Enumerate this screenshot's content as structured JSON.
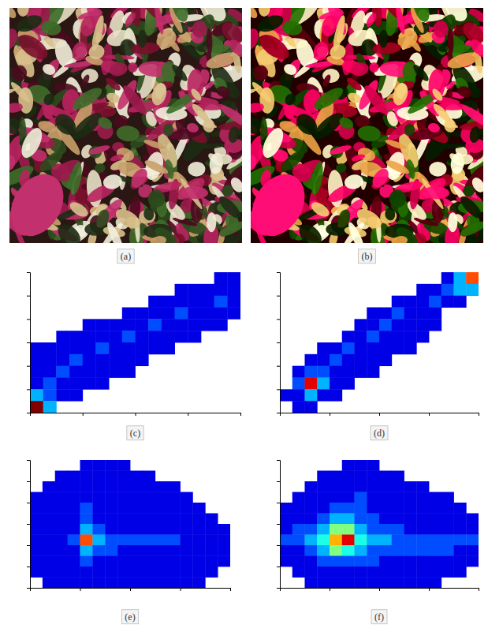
{
  "images": [
    {
      "caption": "(a)"
    },
    {
      "caption": "(b)"
    }
  ],
  "chart_data": [
    {
      "type": "heatmap",
      "caption": "(c)",
      "xlim": [
        0,
        16
      ],
      "ylim": [
        0,
        12
      ],
      "xticks": [
        0,
        4,
        8,
        12,
        16
      ],
      "yticks": [
        0,
        2,
        4,
        6,
        8,
        10,
        12
      ],
      "tick_labels": false,
      "zlim": [
        0,
        10
      ],
      "z": [
        [
          0,
          0,
          0,
          0,
          0,
          0,
          0,
          0,
          0,
          0,
          0,
          0,
          0,
          0,
          1,
          1
        ],
        [
          0,
          0,
          0,
          0,
          0,
          0,
          0,
          0,
          0,
          0,
          0,
          1,
          1,
          1,
          1,
          1
        ],
        [
          0,
          0,
          0,
          0,
          0,
          0,
          0,
          0,
          0,
          1,
          1,
          1,
          1,
          1,
          2,
          1
        ],
        [
          0,
          0,
          0,
          0,
          0,
          0,
          0,
          1,
          1,
          1,
          1,
          2,
          1,
          1,
          1,
          1
        ],
        [
          0,
          0,
          0,
          0,
          1,
          1,
          1,
          1,
          1,
          2,
          1,
          1,
          1,
          1,
          1,
          0
        ],
        [
          0,
          0,
          1,
          1,
          1,
          1,
          1,
          2,
          1,
          1,
          1,
          1,
          1,
          0,
          0,
          0
        ],
        [
          1,
          1,
          1,
          1,
          1,
          2,
          1,
          1,
          1,
          1,
          1,
          0,
          0,
          0,
          0,
          0
        ],
        [
          1,
          1,
          1,
          2,
          1,
          1,
          1,
          1,
          1,
          0,
          0,
          0,
          0,
          0,
          0,
          0
        ],
        [
          1,
          1,
          2,
          1,
          1,
          1,
          1,
          1,
          0,
          0,
          0,
          0,
          0,
          0,
          0,
          0
        ],
        [
          1,
          2,
          1,
          1,
          1,
          1,
          0,
          0,
          0,
          0,
          0,
          0,
          0,
          0,
          0,
          0
        ],
        [
          3,
          2,
          1,
          1,
          0,
          0,
          0,
          0,
          0,
          0,
          0,
          0,
          0,
          0,
          0,
          0
        ],
        [
          10,
          3,
          0,
          0,
          0,
          0,
          0,
          0,
          0,
          0,
          0,
          0,
          0,
          0,
          0,
          0
        ]
      ]
    },
    {
      "type": "heatmap",
      "caption": "(d)",
      "xlim": [
        0,
        16
      ],
      "ylim": [
        0,
        12
      ],
      "xticks": [
        0,
        4,
        8,
        12,
        16
      ],
      "yticks": [
        0,
        2,
        4,
        6,
        8,
        10,
        12
      ],
      "tick_labels": false,
      "zlim": [
        0,
        10
      ],
      "z": [
        [
          0,
          0,
          0,
          0,
          0,
          0,
          0,
          0,
          0,
          0,
          0,
          0,
          0,
          1,
          3,
          8
        ],
        [
          0,
          0,
          0,
          0,
          0,
          0,
          0,
          0,
          0,
          0,
          0,
          1,
          1,
          2,
          3,
          3
        ],
        [
          0,
          0,
          0,
          0,
          0,
          0,
          0,
          0,
          0,
          1,
          1,
          1,
          2,
          1,
          1,
          0
        ],
        [
          0,
          0,
          0,
          0,
          0,
          0,
          0,
          1,
          1,
          2,
          1,
          1,
          1,
          0,
          0,
          0
        ],
        [
          0,
          0,
          0,
          0,
          0,
          0,
          1,
          1,
          2,
          1,
          1,
          1,
          1,
          0,
          0,
          0
        ],
        [
          0,
          0,
          0,
          0,
          0,
          1,
          1,
          2,
          1,
          1,
          1,
          1,
          0,
          0,
          0,
          0
        ],
        [
          0,
          0,
          0,
          1,
          1,
          2,
          1,
          1,
          1,
          1,
          1,
          0,
          0,
          0,
          0,
          0
        ],
        [
          0,
          0,
          1,
          1,
          2,
          1,
          1,
          1,
          1,
          0,
          0,
          0,
          0,
          0,
          0,
          0
        ],
        [
          0,
          1,
          2,
          2,
          1,
          1,
          1,
          1,
          0,
          0,
          0,
          0,
          0,
          0,
          0,
          0
        ],
        [
          0,
          2,
          9,
          3,
          1,
          1,
          0,
          0,
          0,
          0,
          0,
          0,
          0,
          0,
          0,
          0
        ],
        [
          1,
          1,
          3,
          1,
          1,
          0,
          0,
          0,
          0,
          0,
          0,
          0,
          0,
          0,
          0,
          0
        ],
        [
          0,
          1,
          1,
          0,
          0,
          0,
          0,
          0,
          0,
          0,
          0,
          0,
          0,
          0,
          0,
          0
        ]
      ]
    },
    {
      "type": "heatmap",
      "caption": "(e)",
      "xlim": [
        0,
        16
      ],
      "ylim": [
        0,
        12
      ],
      "xticks": [
        0,
        4,
        8,
        12,
        16
      ],
      "yticks": [
        0,
        2,
        4,
        6,
        8,
        10,
        12
      ],
      "tick_labels": false,
      "zlim": [
        0,
        10
      ],
      "z": [
        [
          0,
          0,
          0,
          0,
          1,
          1,
          1,
          1,
          0,
          0,
          0,
          0,
          0,
          0,
          0,
          0
        ],
        [
          0,
          0,
          1,
          1,
          1,
          1,
          1,
          1,
          1,
          1,
          0,
          0,
          0,
          0,
          0,
          0
        ],
        [
          0,
          1,
          1,
          1,
          1,
          1,
          1,
          1,
          1,
          1,
          1,
          1,
          0,
          0,
          0,
          0
        ],
        [
          1,
          1,
          1,
          1,
          1,
          1,
          1,
          1,
          1,
          1,
          1,
          1,
          1,
          0,
          0,
          0
        ],
        [
          1,
          1,
          1,
          1,
          2,
          1,
          1,
          1,
          1,
          1,
          1,
          1,
          1,
          1,
          0,
          0
        ],
        [
          1,
          1,
          1,
          1,
          2,
          1,
          1,
          1,
          1,
          1,
          1,
          1,
          1,
          1,
          1,
          0
        ],
        [
          1,
          1,
          1,
          1,
          3,
          2,
          1,
          1,
          1,
          1,
          1,
          1,
          1,
          1,
          1,
          1
        ],
        [
          1,
          1,
          1,
          2,
          8,
          3,
          2,
          2,
          2,
          2,
          2,
          2,
          1,
          1,
          1,
          1
        ],
        [
          1,
          1,
          1,
          1,
          3,
          2,
          2,
          1,
          1,
          1,
          1,
          1,
          1,
          1,
          1,
          1
        ],
        [
          1,
          1,
          1,
          1,
          2,
          1,
          1,
          1,
          1,
          1,
          1,
          1,
          1,
          1,
          1,
          1
        ],
        [
          1,
          1,
          1,
          1,
          1,
          1,
          1,
          1,
          1,
          1,
          1,
          1,
          1,
          1,
          1,
          0
        ],
        [
          0,
          1,
          1,
          1,
          1,
          1,
          1,
          1,
          1,
          1,
          1,
          1,
          1,
          1,
          0,
          0
        ]
      ]
    },
    {
      "type": "heatmap",
      "caption": "(f)",
      "xlim": [
        0,
        16
      ],
      "ylim": [
        0,
        12
      ],
      "xticks": [
        0,
        4,
        8,
        12,
        16
      ],
      "yticks": [
        0,
        2,
        4,
        6,
        8,
        10,
        12
      ],
      "tick_labels": false,
      "zlim": [
        0,
        10
      ],
      "z": [
        [
          0,
          0,
          0,
          0,
          0,
          1,
          1,
          1,
          0,
          0,
          0,
          0,
          0,
          0,
          0,
          0
        ],
        [
          0,
          0,
          0,
          1,
          1,
          1,
          1,
          1,
          1,
          1,
          0,
          0,
          0,
          0,
          0,
          0
        ],
        [
          0,
          0,
          1,
          1,
          1,
          1,
          1,
          1,
          1,
          1,
          1,
          1,
          0,
          0,
          0,
          0
        ],
        [
          0,
          1,
          1,
          1,
          1,
          1,
          2,
          1,
          1,
          1,
          1,
          1,
          1,
          1,
          0,
          0
        ],
        [
          1,
          1,
          1,
          1,
          2,
          2,
          2,
          1,
          1,
          1,
          1,
          1,
          1,
          1,
          1,
          0
        ],
        [
          1,
          1,
          1,
          2,
          3,
          3,
          2,
          2,
          1,
          1,
          1,
          1,
          1,
          1,
          1,
          1
        ],
        [
          1,
          2,
          2,
          3,
          5,
          5,
          3,
          2,
          2,
          2,
          1,
          1,
          1,
          1,
          1,
          1
        ],
        [
          2,
          2,
          3,
          4,
          7,
          9,
          4,
          3,
          3,
          2,
          2,
          2,
          2,
          2,
          2,
          2
        ],
        [
          1,
          1,
          2,
          3,
          5,
          4,
          3,
          2,
          2,
          2,
          2,
          2,
          2,
          2,
          1,
          1
        ],
        [
          1,
          1,
          1,
          2,
          2,
          2,
          2,
          2,
          1,
          1,
          1,
          1,
          1,
          1,
          1,
          1
        ],
        [
          0,
          1,
          1,
          1,
          1,
          1,
          1,
          1,
          1,
          1,
          1,
          1,
          1,
          1,
          1,
          0
        ],
        [
          0,
          0,
          1,
          1,
          1,
          1,
          1,
          1,
          1,
          1,
          1,
          1,
          1,
          0,
          0,
          0
        ]
      ]
    }
  ]
}
